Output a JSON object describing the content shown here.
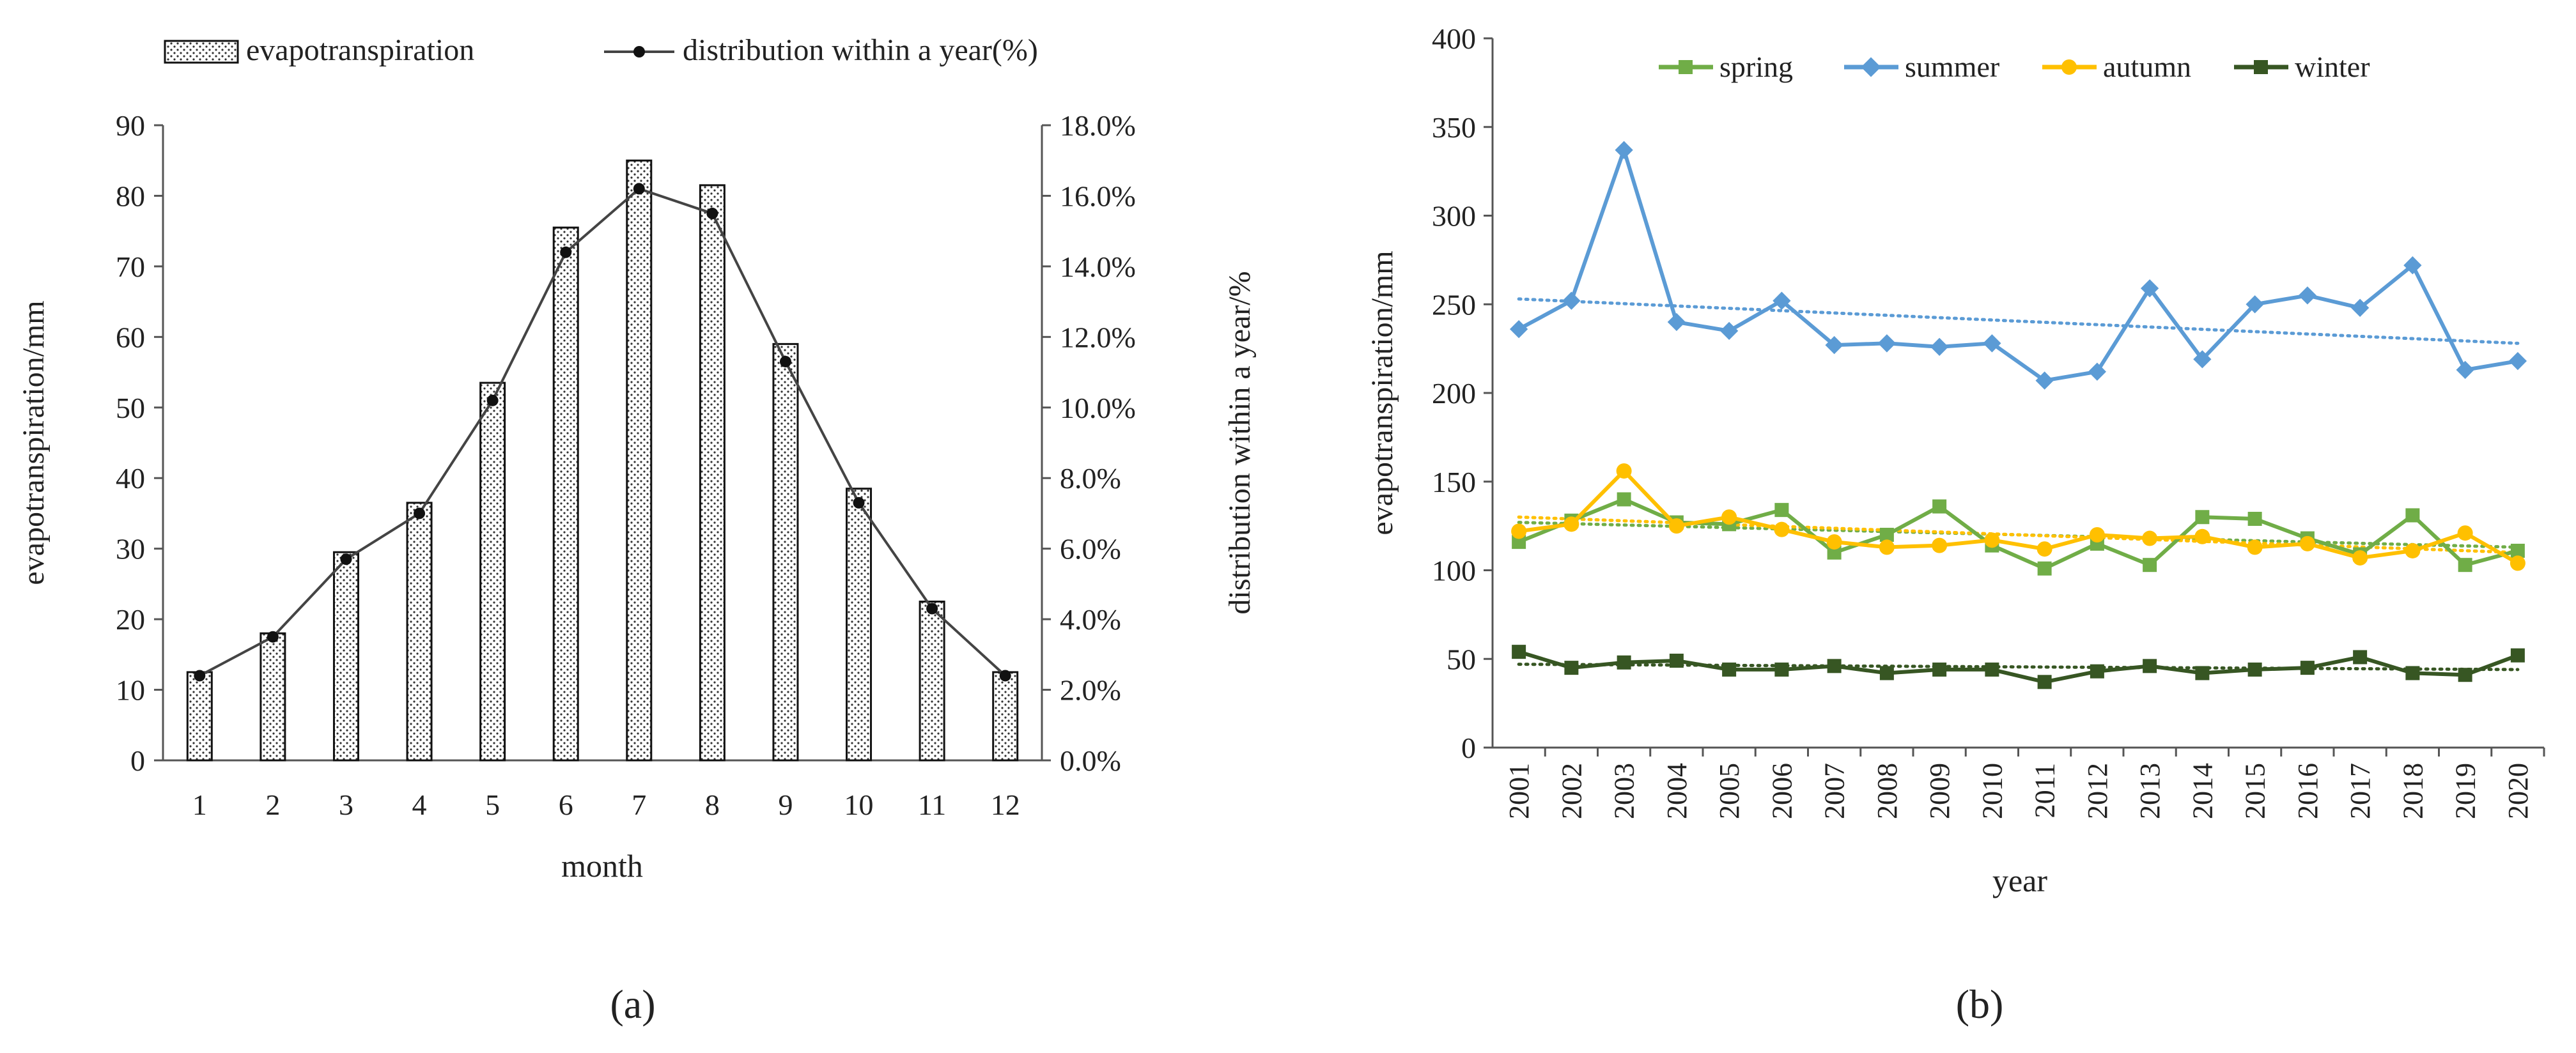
{
  "chart_data": [
    {
      "type": "bar+line",
      "panel_label": "(a)",
      "xlabel": "month",
      "ylabel": "evapotranspiration/mm",
      "y2label": "distribution within a year/%",
      "ylim": [
        0,
        90
      ],
      "y2lim": [
        0,
        18
      ],
      "yticks": [
        "0",
        "10",
        "20",
        "30",
        "40",
        "50",
        "60",
        "70",
        "80",
        "90"
      ],
      "y2ticks": [
        "0.0%",
        "2.0%",
        "4.0%",
        "6.0%",
        "8.0%",
        "10.0%",
        "12.0%",
        "14.0%",
        "16.0%",
        "18.0%"
      ],
      "categories": [
        "1",
        "2",
        "3",
        "4",
        "5",
        "6",
        "7",
        "8",
        "9",
        "10",
        "11",
        "12"
      ],
      "legend": [
        "evapotranspiration",
        "distribution within a year(%)"
      ],
      "series": [
        {
          "name": "evapotranspiration",
          "axis": "left",
          "values": [
            12.5,
            18,
            29.5,
            36.5,
            53.5,
            75.5,
            85,
            81.5,
            59,
            38.5,
            22.5,
            12.5
          ]
        },
        {
          "name": "distribution within a year(%)",
          "axis": "right",
          "values": [
            2.4,
            3.5,
            5.7,
            7.0,
            10.2,
            14.4,
            16.2,
            15.5,
            11.3,
            7.3,
            4.3,
            2.4
          ]
        }
      ],
      "colors": {
        "bar_border": "#111111",
        "line": "#444444",
        "marker": "#111111"
      }
    },
    {
      "type": "line",
      "panel_label": "(b)",
      "xlabel": "year",
      "ylabel": "evapotranspiration/mm",
      "ylim": [
        0,
        400
      ],
      "yticks": [
        "0",
        "50",
        "100",
        "150",
        "200",
        "250",
        "300",
        "350",
        "400"
      ],
      "x": [
        "2001",
        "2002",
        "2003",
        "2004",
        "2005",
        "2006",
        "2007",
        "2008",
        "2009",
        "2010",
        "2011",
        "2012",
        "2013",
        "2014",
        "2015",
        "2016",
        "2017",
        "2018",
        "2019",
        "2020"
      ],
      "legend": [
        "spring",
        "summer",
        "autumn",
        "winter"
      ],
      "series": [
        {
          "name": "spring",
          "marker": "square",
          "color": "#70AD47",
          "values": [
            116,
            128,
            140,
            127,
            126,
            134,
            110,
            120,
            136,
            114,
            101,
            115,
            103,
            130,
            129,
            118,
            109,
            131,
            103,
            111
          ]
        },
        {
          "name": "summer",
          "marker": "diamond",
          "color": "#5B9BD5",
          "values": [
            236,
            252,
            337,
            240,
            235,
            252,
            227,
            228,
            226,
            228,
            207,
            212,
            259,
            219,
            250,
            255,
            248,
            272,
            213,
            218
          ]
        },
        {
          "name": "autumn",
          "marker": "circle",
          "color": "#FFC000",
          "values": [
            122,
            126,
            156,
            125,
            130,
            123,
            116,
            113,
            114,
            117,
            112,
            120,
            118,
            119,
            113,
            115,
            107,
            111,
            121,
            104
          ]
        },
        {
          "name": "winter",
          "marker": "square",
          "color": "#375623",
          "values": [
            54,
            45,
            48,
            49,
            44,
            44,
            46,
            42,
            44,
            44,
            37,
            43,
            46,
            42,
            44,
            45,
            51,
            42,
            41,
            52
          ]
        }
      ],
      "trendlines": [
        {
          "name": "spring",
          "color": "#70AD47",
          "start": 127,
          "end": 113
        },
        {
          "name": "summer",
          "color": "#5B9BD5",
          "start": 253,
          "end": 228
        },
        {
          "name": "autumn",
          "color": "#FFC000",
          "start": 130,
          "end": 110
        },
        {
          "name": "winter",
          "color": "#375623",
          "start": 47,
          "end": 44
        }
      ]
    }
  ]
}
